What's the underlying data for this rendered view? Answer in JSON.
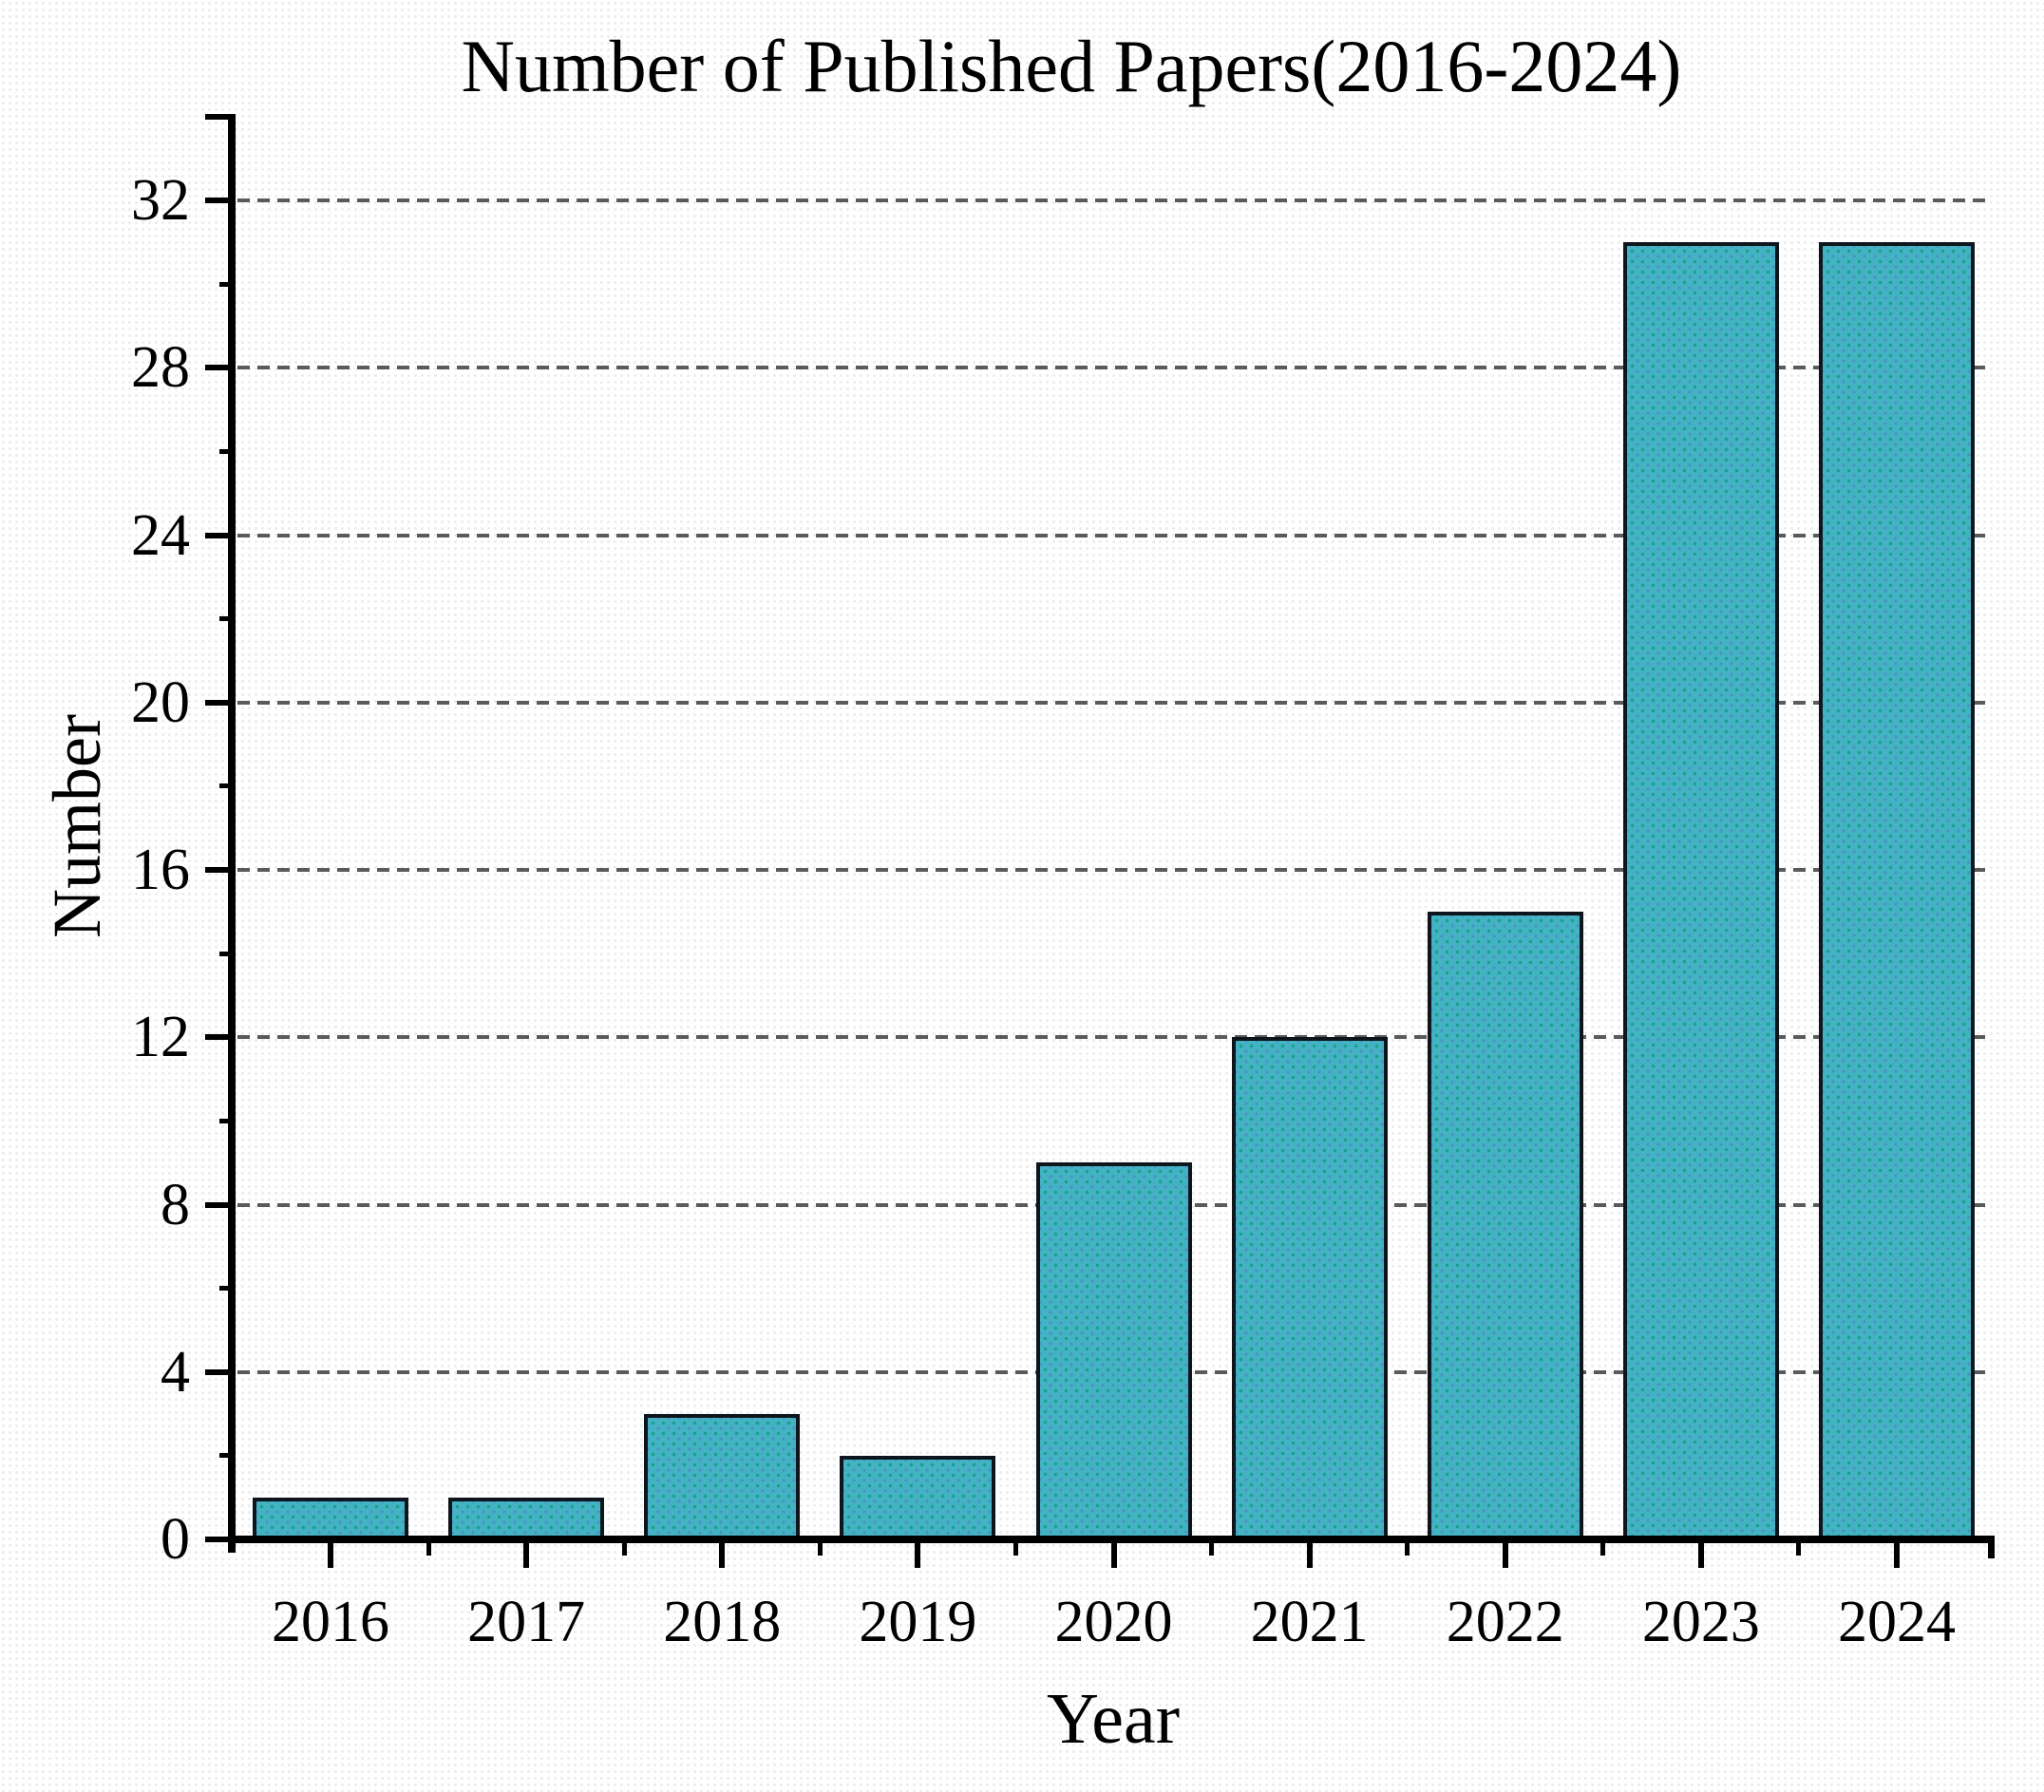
{
  "chart_data": {
    "type": "bar",
    "title": "Number of Published Papers(2016-2024)",
    "xlabel": "Year",
    "ylabel": "Number",
    "categories": [
      "2016",
      "2017",
      "2018",
      "2019",
      "2020",
      "2021",
      "2022",
      "2023",
      "2024"
    ],
    "values": [
      1,
      1,
      3,
      2,
      9,
      12,
      15,
      31,
      31
    ],
    "ylim": [
      0,
      34
    ],
    "yticks_major": [
      0,
      4,
      8,
      12,
      16,
      20,
      24,
      28,
      32
    ],
    "yticks_minor": [
      2,
      6,
      10,
      14,
      18,
      22,
      26,
      30
    ],
    "grid": "horizontal dashed gridlines at major y ticks",
    "legend": null,
    "bar_width_fraction": 0.8,
    "colors": {
      "bar_fill": "#43b3c4",
      "bar_dot": "#1f9e8e",
      "bar_dot2": "#4e8fc0",
      "bar_border": "#0d161c",
      "axis": "#000000",
      "gridline": "#5a5a5a",
      "text": "#000000",
      "background": "#ffffff"
    }
  }
}
